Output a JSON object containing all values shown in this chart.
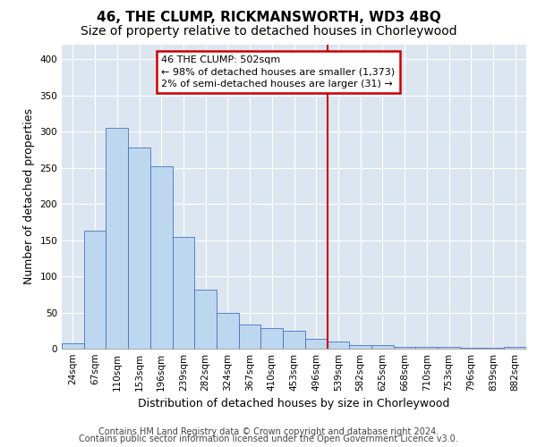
{
  "title": "46, THE CLUMP, RICKMANSWORTH, WD3 4BQ",
  "subtitle": "Size of property relative to detached houses in Chorleywood",
  "xlabel": "Distribution of detached houses by size in Chorleywood",
  "ylabel": "Number of detached properties",
  "bin_labels": [
    "24sqm",
    "67sqm",
    "110sqm",
    "153sqm",
    "196sqm",
    "239sqm",
    "282sqm",
    "324sqm",
    "367sqm",
    "410sqm",
    "453sqm",
    "496sqm",
    "539sqm",
    "582sqm",
    "625sqm",
    "668sqm",
    "710sqm",
    "753sqm",
    "796sqm",
    "839sqm",
    "882sqm"
  ],
  "bar_values": [
    8,
    163,
    305,
    278,
    252,
    155,
    82,
    50,
    33,
    28,
    25,
    13,
    10,
    5,
    5,
    3,
    3,
    2,
    1,
    1,
    2
  ],
  "bar_color": "#bdd7ee",
  "bar_edge_color": "#4472c4",
  "vline_x": 11.5,
  "vline_color": "#cc0000",
  "annotation_text": "46 THE CLUMP: 502sqm\n← 98% of detached houses are smaller (1,373)\n2% of semi-detached houses are larger (31) →",
  "annotation_box_color": "#cc0000",
  "ylim": [
    0,
    420
  ],
  "yticks": [
    0,
    50,
    100,
    150,
    200,
    250,
    300,
    350,
    400
  ],
  "background_color": "#dce6f1",
  "footer_line1": "Contains HM Land Registry data © Crown copyright and database right 2024.",
  "footer_line2": "Contains public sector information licensed under the Open Government Licence v3.0.",
  "title_fontsize": 11,
  "subtitle_fontsize": 10,
  "axis_label_fontsize": 9,
  "tick_fontsize": 7.5,
  "footer_fontsize": 7,
  "annotation_fontsize": 8
}
